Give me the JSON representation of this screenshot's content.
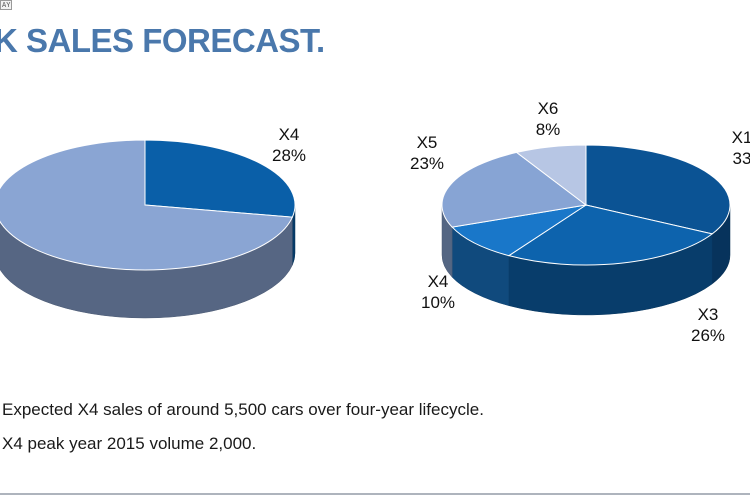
{
  "corner_tag": "AY",
  "header": {
    "title": "K SALES FORECAST."
  },
  "chart_data": [
    {
      "type": "pie",
      "slices": [
        {
          "label": "X4",
          "value": 28,
          "value_label": "28%",
          "color": "#0a5fa8"
        },
        {
          "label": "",
          "value": 72,
          "value_label": "",
          "color": "#8aa5d3"
        }
      ],
      "style": "3d"
    },
    {
      "type": "pie",
      "slices": [
        {
          "label": "X1",
          "value": 33,
          "value_label": "33",
          "color": "#0b5394"
        },
        {
          "label": "X3",
          "value": 26,
          "value_label": "26%",
          "color": "#0d63ad"
        },
        {
          "label": "X4",
          "value": 10,
          "value_label": "10%",
          "color": "#1977c9"
        },
        {
          "label": "X5",
          "value": 23,
          "value_label": "23%",
          "color": "#87a4d4"
        },
        {
          "label": "X6",
          "value": 8,
          "value_label": "8%",
          "color": "#b7c6e4"
        }
      ],
      "style": "3d"
    }
  ],
  "bullets": [
    "Expected X4 sales of around 5,500 cars over four-year lifecycle.",
    "X4 peak year 2015 volume 2,000."
  ]
}
